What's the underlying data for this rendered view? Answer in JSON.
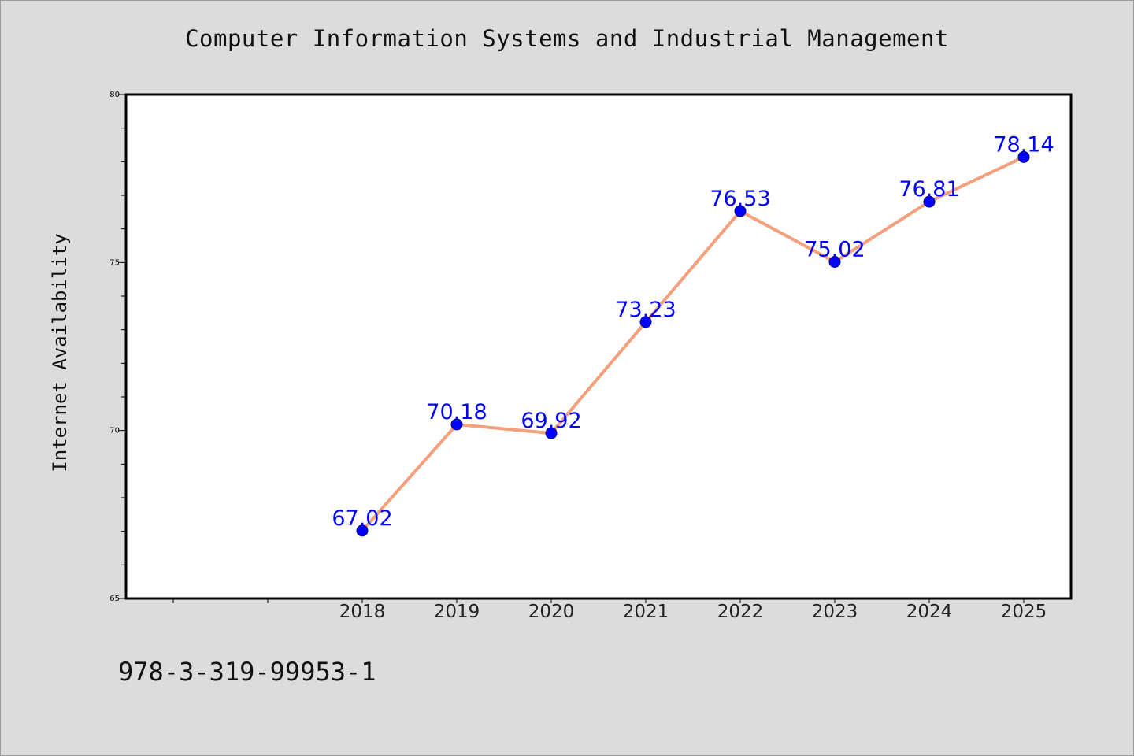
{
  "title": "Computer Information Systems and Industrial Management",
  "footer_text": "978-3-319-99953-1",
  "chart_data": {
    "type": "line",
    "title": "Computer Information Systems and Industrial Management",
    "xlabel": "",
    "ylabel": "Internet Availability",
    "x_tick_labels": [
      "2018",
      "2019",
      "2020",
      "2021",
      "2022",
      "2023",
      "2024",
      "2025"
    ],
    "y_tick_labels": [
      "65",
      "70",
      "75",
      "80"
    ],
    "ylim": [
      65,
      80
    ],
    "grid": false,
    "series": [
      {
        "x": [
          "2018",
          "2019",
          "2020",
          "2021",
          "2022",
          "2023",
          "2024",
          "2025"
        ],
        "values": [
          67.02,
          70.18,
          69.92,
          73.23,
          76.53,
          75.02,
          76.81,
          78.14
        ],
        "labels": [
          "67.02",
          "70.18",
          "69.92",
          "73.23",
          "76.53",
          "75.02",
          "76.81",
          "78.14"
        ],
        "line_color": "#f4a07c",
        "marker_color": "#0000ff",
        "label_color": "#0000ff"
      }
    ]
  }
}
